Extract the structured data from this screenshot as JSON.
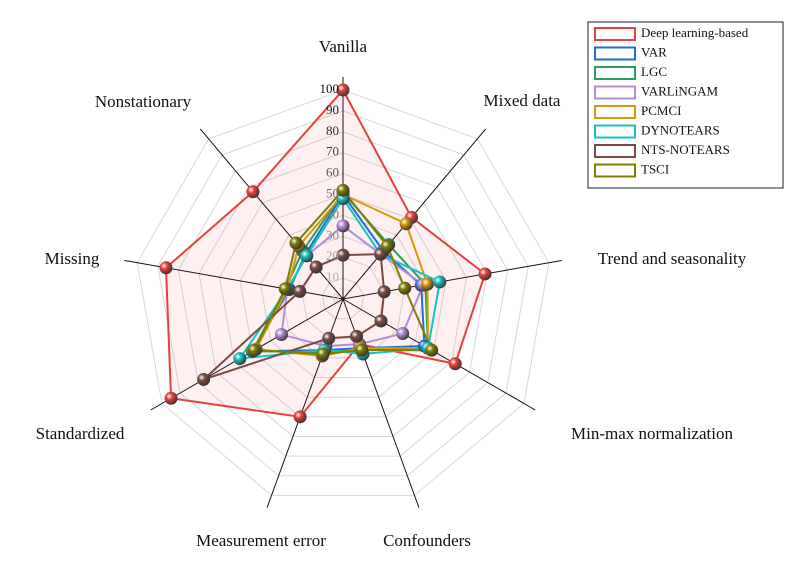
{
  "chart_data": {
    "type": "radar",
    "categories": [
      "Vanilla",
      "Mixed data",
      "Trend and seasonality",
      "Min-max normalization",
      "Confounders",
      "Measurement error",
      "Standardized",
      "Missing",
      "Nonstationary"
    ],
    "rlim": [
      0,
      100
    ],
    "rticks": [
      0,
      10,
      20,
      30,
      40,
      50,
      60,
      70,
      80,
      90,
      100
    ],
    "grid": true,
    "legend": "upper right",
    "series": [
      {
        "name": "Deep learning-based",
        "color": "#e8403c",
        "values": [
          100,
          51,
          69,
          62,
          23,
          60,
          95,
          86,
          67
        ]
      },
      {
        "name": "VAR",
        "color": "#1f6fd1",
        "values": [
          50,
          30,
          38,
          45,
          25,
          26,
          50,
          26,
          28
        ]
      },
      {
        "name": "LGC",
        "color": "#2ca05a",
        "values": [
          51,
          34,
          40,
          47,
          26,
          27,
          50,
          28,
          30
        ]
      },
      {
        "name": "VARLiNGAM",
        "color": "#b68bd6",
        "values": [
          35,
          28,
          39,
          33,
          23,
          24,
          34,
          27,
          27
        ]
      },
      {
        "name": "PCMCI",
        "color": "#d49a0a",
        "values": [
          50,
          47,
          41,
          47,
          25,
          29,
          48,
          27,
          33
        ]
      },
      {
        "name": "DYNOTEARS",
        "color": "#17c2c2",
        "values": [
          48,
          28,
          47,
          47,
          28,
          26,
          57,
          27,
          27
        ]
      },
      {
        "name": "NTS-NOTEARS",
        "color": "#7b4a44",
        "values": [
          21,
          28,
          20,
          21,
          19,
          20,
          77,
          21,
          20
        ]
      },
      {
        "name": "TSCI",
        "color": "#7d7d00",
        "values": [
          52,
          33,
          30,
          49,
          26,
          28,
          49,
          28,
          35
        ]
      }
    ]
  }
}
